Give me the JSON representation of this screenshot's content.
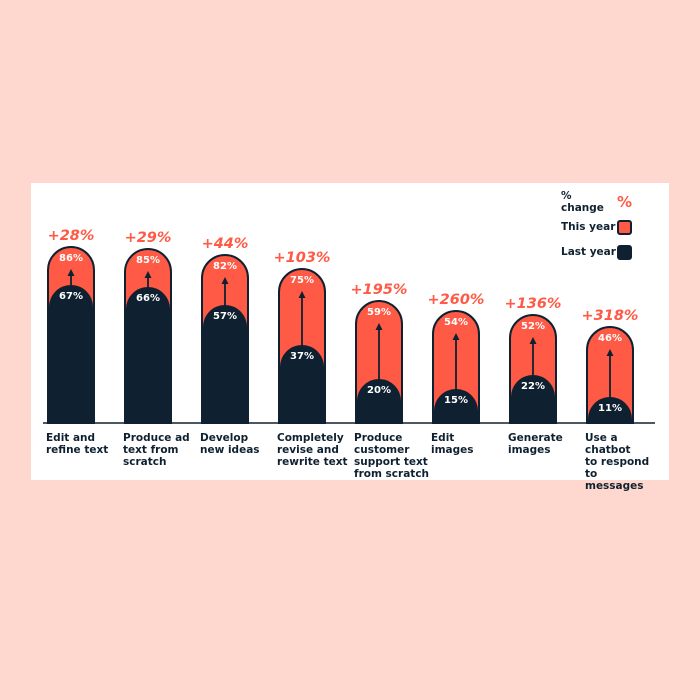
{
  "chart_data": {
    "type": "bar",
    "categories": [
      "Edit and\nrefine text",
      "Produce ad\ntext from\nscratch",
      "Develop\nnew ideas",
      "Completely\nrevise and\nrewrite text",
      "Produce\ncustomer\nsupport text\nfrom scratch",
      "Edit\nimages",
      "Generate\nimages",
      "Use a chatbot\nto respond to\nmessages"
    ],
    "series": [
      {
        "name": "This year",
        "values": [
          86,
          85,
          82,
          75,
          59,
          54,
          52,
          46
        ]
      },
      {
        "name": "Last year",
        "values": [
          67,
          66,
          57,
          37,
          20,
          15,
          22,
          11
        ]
      }
    ],
    "value_labels": {
      "this_year": [
        "86%",
        "85%",
        "82%",
        "75%",
        "59%",
        "54%",
        "52%",
        "46%"
      ],
      "last_year": [
        "67%",
        "66%",
        "57%",
        "37%",
        "20%",
        "15%",
        "22%",
        "11%"
      ]
    },
    "pct_change": [
      "+28%",
      "+29%",
      "+44%",
      "+103%",
      "+195%",
      "+260%",
      "+136%",
      "+318%"
    ],
    "ylim": [
      0,
      100
    ],
    "legend": {
      "position": "top-right",
      "items": [
        {
          "label": "% change",
          "symbol": "%"
        },
        {
          "label": "This year"
        },
        {
          "label": "Last year"
        }
      ]
    },
    "colors": {
      "this_year": "#ff5a45",
      "last_year": "#0f2130",
      "change": "#ff5a45",
      "text": "#0f2130"
    }
  }
}
